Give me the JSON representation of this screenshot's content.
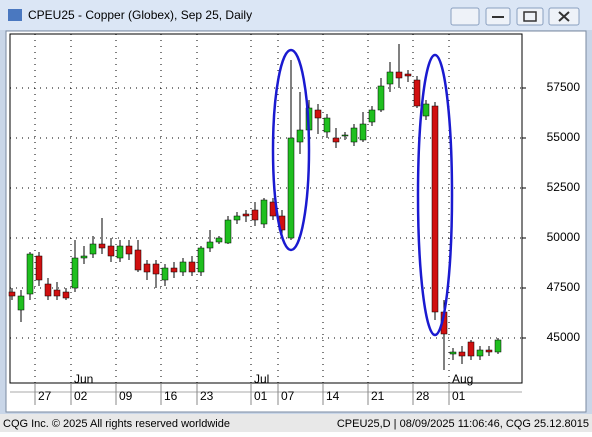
{
  "window_title": "CPEU25 - Copper (Globex), Sep 25, Daily",
  "footer_left": "CQG Inc. © 2025 All rights reserved worldwide",
  "footer_right": "CPEU25,D | 08/09/2025 11:06:46, CQG 25.12.8015",
  "chart_data": {
    "type": "candlestick",
    "categories": [
      null,
      null,
      null,
      "27",
      null,
      null,
      null,
      "02",
      null,
      null,
      null,
      null,
      "09",
      null,
      null,
      null,
      null,
      "16",
      null,
      null,
      null,
      "23",
      null,
      null,
      null,
      null,
      null,
      "01",
      null,
      null,
      "07",
      null,
      null,
      null,
      null,
      "14",
      null,
      null,
      null,
      null,
      "21",
      null,
      null,
      null,
      null,
      "28",
      null,
      null,
      null,
      "01",
      null,
      null,
      null,
      null,
      null
    ],
    "month_labels": [
      null,
      null,
      null,
      null,
      null,
      null,
      null,
      "Jun",
      null,
      null,
      null,
      null,
      null,
      null,
      null,
      null,
      null,
      null,
      null,
      null,
      null,
      null,
      null,
      null,
      null,
      null,
      null,
      "Jul",
      null,
      null,
      null,
      null,
      null,
      null,
      null,
      null,
      null,
      null,
      null,
      null,
      null,
      null,
      null,
      null,
      null,
      null,
      null,
      null,
      null,
      "Aug",
      null,
      null,
      null,
      null,
      null
    ],
    "open": [
      47300,
      46400,
      47200,
      49100,
      47700,
      47400,
      47300,
      47500,
      49000,
      49200,
      49700,
      49600,
      49000,
      49600,
      49400,
      48700,
      48700,
      47900,
      48500,
      48300,
      48800,
      48300,
      49500,
      49800,
      49750,
      50900,
      51200,
      51400,
      50700,
      51800,
      51100,
      50000,
      54800,
      55400,
      56400,
      55300,
      55000,
      55100,
      54800,
      54900,
      55800,
      56400,
      57700,
      58300,
      58200,
      57900,
      56100,
      56600,
      46300,
      44200,
      44300,
      44800,
      44100,
      44400,
      44300
    ],
    "high": [
      47500,
      47400,
      49300,
      49300,
      48000,
      47800,
      47500,
      49900,
      49600,
      50100,
      51000,
      50000,
      49900,
      49900,
      49900,
      48900,
      48900,
      48700,
      48800,
      49000,
      49100,
      49600,
      50400,
      50100,
      51100,
      51300,
      51400,
      51800,
      52000,
      52000,
      51400,
      58900,
      57300,
      56900,
      56700,
      56200,
      55500,
      55300,
      55700,
      56300,
      56600,
      58000,
      58800,
      59700,
      58400,
      58100,
      56900,
      56800,
      46900,
      44500,
      44600,
      44900,
      44600,
      44600,
      45000
    ],
    "low": [
      46900,
      45800,
      46900,
      47600,
      46900,
      46900,
      46900,
      47300,
      48700,
      49000,
      49200,
      48800,
      48800,
      48900,
      48300,
      47900,
      47500,
      47600,
      48000,
      48100,
      48100,
      48100,
      49300,
      49700,
      49700,
      50700,
      50800,
      50600,
      50500,
      50900,
      50000,
      49900,
      54200,
      55000,
      55200,
      55000,
      54500,
      54900,
      54600,
      54800,
      55600,
      56300,
      57300,
      57500,
      57800,
      56500,
      55900,
      45900,
      43400,
      43900,
      43700,
      43900,
      43900,
      44100,
      44200
    ],
    "close": [
      47100,
      47100,
      49200,
      47900,
      47100,
      47100,
      47000,
      49000,
      49100,
      49700,
      49500,
      49100,
      49600,
      49200,
      48400,
      48300,
      48200,
      48500,
      48300,
      48800,
      48300,
      49500,
      49800,
      50000,
      50900,
      51100,
      51100,
      50900,
      51900,
      51100,
      50400,
      55000,
      55400,
      56500,
      56000,
      56000,
      54800,
      55150,
      55500,
      55700,
      56400,
      57600,
      58300,
      58000,
      58100,
      56600,
      56700,
      46300,
      45200,
      44300,
      44100,
      44100,
      44400,
      44300,
      44900
    ],
    "up_color": "#1fbf1f",
    "down_color": "#d01010",
    "ylim": [
      42750,
      60200
    ],
    "yticks": [
      45000,
      47500,
      50000,
      52500,
      55000,
      57500
    ],
    "grid": true
  }
}
